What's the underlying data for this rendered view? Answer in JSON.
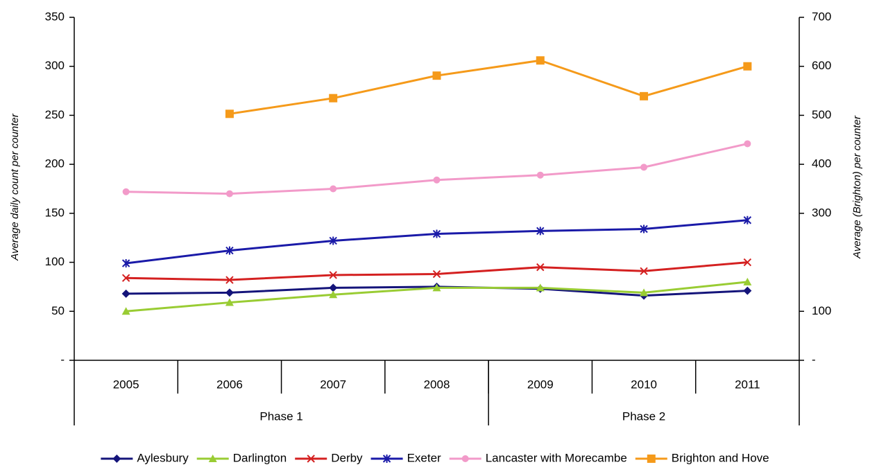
{
  "chart_data": {
    "type": "line",
    "y_label": "Average daily count per counter",
    "y2_label": "Average (Brighton) per counter",
    "categories": [
      "2005",
      "2006",
      "2007",
      "2008",
      "2009",
      "2010",
      "2011"
    ],
    "groups": [
      {
        "label": "Phase 1",
        "span": 4
      },
      {
        "label": "Phase 2",
        "span": 3
      }
    ],
    "ylim": [
      0,
      350
    ],
    "yticks": [
      {
        "value": 0,
        "label": "-"
      },
      50,
      100,
      150,
      200,
      250,
      300,
      350
    ],
    "y2lim": [
      0,
      700
    ],
    "y2ticks": [
      {
        "value": 0,
        "label": "-"
      },
      100,
      300,
      400,
      500,
      600,
      700
    ],
    "legend": "bottom",
    "series": [
      {
        "name": "Aylesbury",
        "color": "#14147a",
        "marker": "diamond",
        "values": [
          68,
          69,
          74,
          75,
          73,
          66,
          71
        ]
      },
      {
        "name": "Darlington",
        "color": "#99cc33",
        "marker": "triangle",
        "values": [
          50,
          59,
          67,
          74,
          74,
          69,
          80
        ]
      },
      {
        "name": "Derby",
        "color": "#d42020",
        "marker": "x",
        "values": [
          84,
          82,
          87,
          88,
          95,
          91,
          100
        ]
      },
      {
        "name": "Exeter",
        "color": "#1a1aa8",
        "marker": "star",
        "values": [
          99,
          112,
          122,
          129,
          132,
          134,
          143
        ]
      },
      {
        "name": "Lancaster with Morecambe",
        "color": "#f29ac9",
        "marker": "circle",
        "values": [
          172,
          170,
          175,
          184,
          189,
          197,
          221
        ]
      },
      {
        "name": "Brighton and Hove",
        "color": "#f59a1a",
        "marker": "square",
        "axis": "y2",
        "values": [
          null,
          503,
          535,
          581,
          612,
          539,
          600
        ]
      }
    ]
  }
}
